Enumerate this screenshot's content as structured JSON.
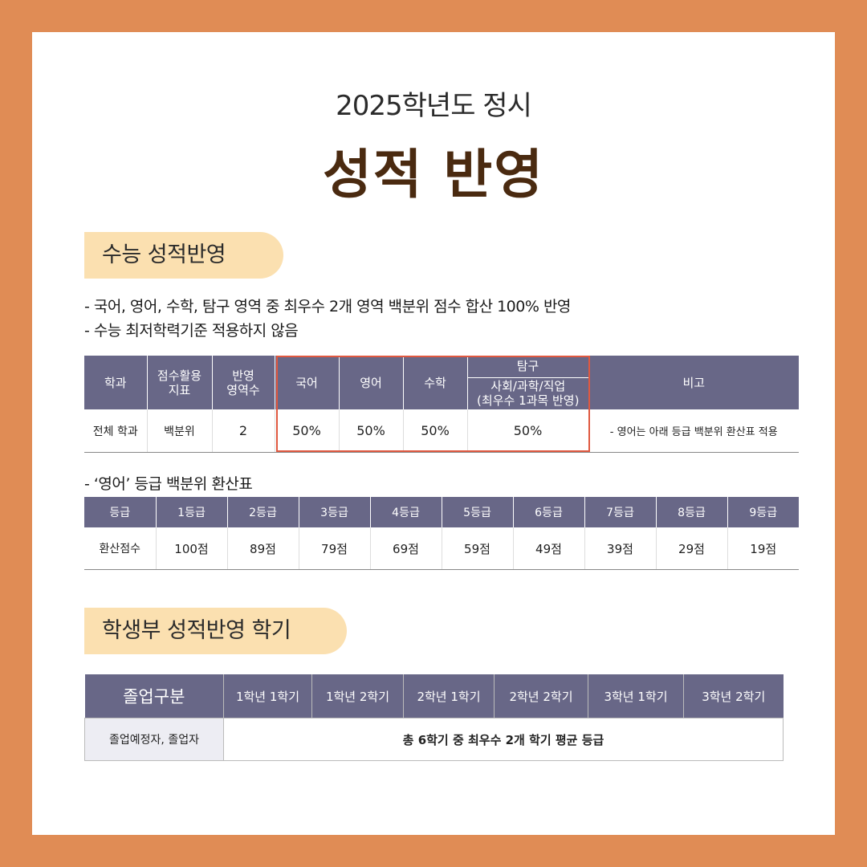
{
  "header": {
    "subtitle": "2025학년도 정시",
    "title": "성적 반영"
  },
  "section1": {
    "heading": "수능 성적반영",
    "notes": [
      "- 국어, 영어, 수학, 탐구 영역 중 최우수 2개 영역 백분위 점수 합산 100% 반영",
      "- 수능 최저학력기준 적용하지 않음"
    ],
    "table": {
      "headers": {
        "dept": "학과",
        "score_index": "점수활용\n지표",
        "area_count": "반영\n영역수",
        "korean": "국어",
        "english": "영어",
        "math": "수학",
        "inquiry": "탐구",
        "inquiry_sub": "사회/과학/직업\n(최우수 1과목 반영)",
        "remark": "비고"
      },
      "row": {
        "dept": "전체 학과",
        "score_index": "백분위",
        "area_count": "2",
        "korean": "50%",
        "english": "50%",
        "math": "50%",
        "inquiry": "50%",
        "remark": "- 영어는 아래 등급 백분위 환산표 적용"
      }
    },
    "english_note": "- ‘영어’ 등급 백분위 환산표",
    "english_table": {
      "header_label": "등급",
      "grades": [
        "1등급",
        "2등급",
        "3등급",
        "4등급",
        "5등급",
        "6등급",
        "7등급",
        "8등급",
        "9등급"
      ],
      "row_label": "환산점수",
      "scores": [
        "100점",
        "89점",
        "79점",
        "69점",
        "59점",
        "49점",
        "39점",
        "29점",
        "19점"
      ]
    }
  },
  "section2": {
    "heading": "학생부 성적반영 학기",
    "table": {
      "header_label": "졸업구분",
      "semesters": [
        "1학년 1학기",
        "1학년 2학기",
        "2학년 1학기",
        "2학년 2학기",
        "3학년 1학기",
        "3학년 2학기"
      ],
      "row_label": "졸업예정자, 졸업자",
      "row_value": "총 6학기 중 최우수 2개 학기 평균 등급"
    }
  },
  "colors": {
    "background": "#e08c55",
    "title": "#4a2a10",
    "pill": "#fbe0b0",
    "table_header": "#686787",
    "highlight": "#e05840"
  }
}
